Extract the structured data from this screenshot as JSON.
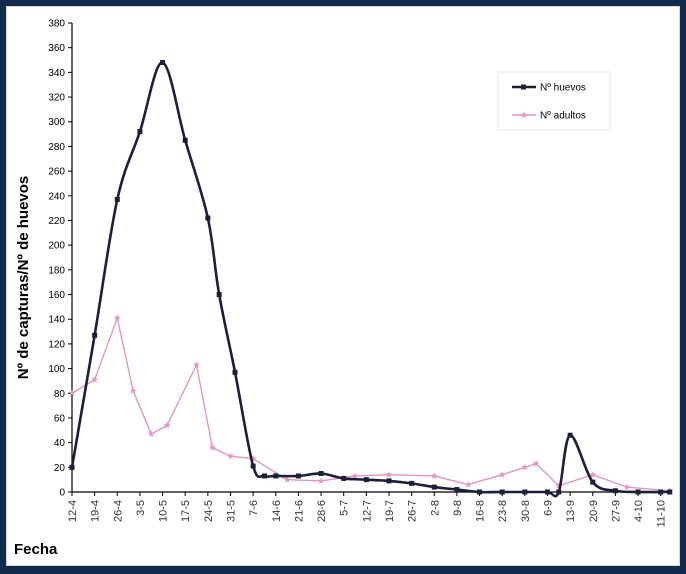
{
  "chart_data": {
    "type": "line",
    "title": "",
    "xlabel": "Fecha",
    "ylabel": "Nº de capturas/Nº de huevos",
    "ylim": [
      0,
      380
    ],
    "yticks": [
      0,
      20,
      40,
      60,
      80,
      100,
      120,
      140,
      160,
      180,
      200,
      220,
      240,
      260,
      280,
      300,
      320,
      340,
      360,
      380
    ],
    "grid": false,
    "legend_position": "top-right",
    "categories": [
      "12-4",
      "19-4",
      "26-4",
      "3-5",
      "10-5",
      "17-5",
      "24-5",
      "31-5",
      "7-6",
      "14-6",
      "21-6",
      "28-6",
      "5-7",
      "12-7",
      "19-7",
      "26-7",
      "2-8",
      "9-8",
      "16-8",
      "23-8",
      "30-8",
      "6-9",
      "13-9",
      "20-9",
      "27-9",
      "4-10",
      "11-10"
    ],
    "series": [
      {
        "name": "Nº huevos",
        "color": "#1b1f3a",
        "marker": "square",
        "smooth": true,
        "points": [
          {
            "x": 0,
            "y": 20
          },
          {
            "x": 1,
            "y": 127
          },
          {
            "x": 2,
            "y": 237
          },
          {
            "x": 3,
            "y": 292
          },
          {
            "x": 4,
            "y": 348
          },
          {
            "x": 5,
            "y": 285
          },
          {
            "x": 6,
            "y": 222
          },
          {
            "x": 6.5,
            "y": 160
          },
          {
            "x": 7.2,
            "y": 97
          },
          {
            "x": 8,
            "y": 21
          },
          {
            "x": 8.5,
            "y": 13
          },
          {
            "x": 9,
            "y": 13
          },
          {
            "x": 10,
            "y": 13
          },
          {
            "x": 11,
            "y": 15
          },
          {
            "x": 12,
            "y": 11
          },
          {
            "x": 13,
            "y": 10
          },
          {
            "x": 14,
            "y": 9
          },
          {
            "x": 15,
            "y": 7
          },
          {
            "x": 16,
            "y": 4
          },
          {
            "x": 17,
            "y": 2
          },
          {
            "x": 18,
            "y": 0
          },
          {
            "x": 19,
            "y": 0
          },
          {
            "x": 20,
            "y": 0
          },
          {
            "x": 21,
            "y": 0
          },
          {
            "x": 21.5,
            "y": 0
          },
          {
            "x": 22,
            "y": 46
          },
          {
            "x": 23,
            "y": 8
          },
          {
            "x": 24,
            "y": 1
          },
          {
            "x": 25,
            "y": 0
          },
          {
            "x": 26,
            "y": 0
          },
          {
            "x": 26.4,
            "y": 0
          }
        ]
      },
      {
        "name": "Nº adultos",
        "color": "#e695c2",
        "marker": "star",
        "smooth": false,
        "points": [
          {
            "x": 0,
            "y": 80
          },
          {
            "x": 1,
            "y": 91
          },
          {
            "x": 2,
            "y": 141
          },
          {
            "x": 2.7,
            "y": 82
          },
          {
            "x": 3.5,
            "y": 47
          },
          {
            "x": 4.2,
            "y": 54
          },
          {
            "x": 5.5,
            "y": 103
          },
          {
            "x": 6.2,
            "y": 36
          },
          {
            "x": 7,
            "y": 29
          },
          {
            "x": 8,
            "y": 27
          },
          {
            "x": 9.5,
            "y": 10
          },
          {
            "x": 11,
            "y": 9
          },
          {
            "x": 12.5,
            "y": 13
          },
          {
            "x": 14,
            "y": 14
          },
          {
            "x": 16,
            "y": 13
          },
          {
            "x": 17.5,
            "y": 6
          },
          {
            "x": 19,
            "y": 14
          },
          {
            "x": 20,
            "y": 20
          },
          {
            "x": 20.5,
            "y": 23
          },
          {
            "x": 21.5,
            "y": 5
          },
          {
            "x": 23,
            "y": 14
          },
          {
            "x": 24.5,
            "y": 4
          },
          {
            "x": 26.4,
            "y": 1
          }
        ]
      }
    ]
  }
}
